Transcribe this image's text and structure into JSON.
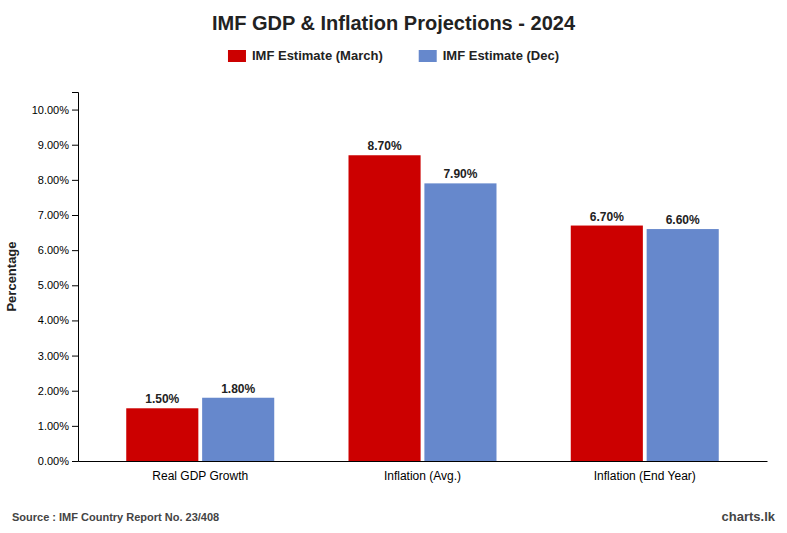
{
  "chart_data": {
    "type": "bar",
    "title": "IMF GDP & Inflation Projections - 2024",
    "categories": [
      "Real GDP Growth",
      "Inflation (Avg.)",
      "Inflation (End Year)"
    ],
    "series": [
      {
        "name": "IMF Estimate (March)",
        "color": "#cc0000",
        "values": [
          1.5,
          8.7,
          6.7
        ],
        "value_labels": [
          "1.50%",
          "8.70%",
          "6.70%"
        ]
      },
      {
        "name": "IMF Estimate (Dec)",
        "color": "#6688cc",
        "values": [
          1.8,
          7.9,
          6.6
        ],
        "value_labels": [
          "1.80%",
          "7.90%",
          "6.60%"
        ]
      }
    ],
    "y_label": "Percentage",
    "ylim": [
      0,
      10.5
    ],
    "yticks": [
      {
        "value": 0,
        "label": "0.00%"
      },
      {
        "value": 1.0,
        "label": "1.00%"
      },
      {
        "value": 2.0,
        "label": "2.00%"
      },
      {
        "value": 3.0,
        "label": "3.00%"
      },
      {
        "value": 4.0,
        "label": "4.00%"
      },
      {
        "value": 5.0,
        "label": "5.00%"
      },
      {
        "value": 6.0,
        "label": "6.00%"
      },
      {
        "value": 7.0,
        "label": "7.00%"
      },
      {
        "value": 8.0,
        "label": "8.00%"
      },
      {
        "value": 9.0,
        "label": "9.00%"
      },
      {
        "value": 10.0,
        "label": "10.00%"
      }
    ],
    "grid": false,
    "legend": "top",
    "data_labels": true,
    "annotations": [
      "Source : IMF Country Report No.  23/408",
      "charts.lk"
    ]
  }
}
